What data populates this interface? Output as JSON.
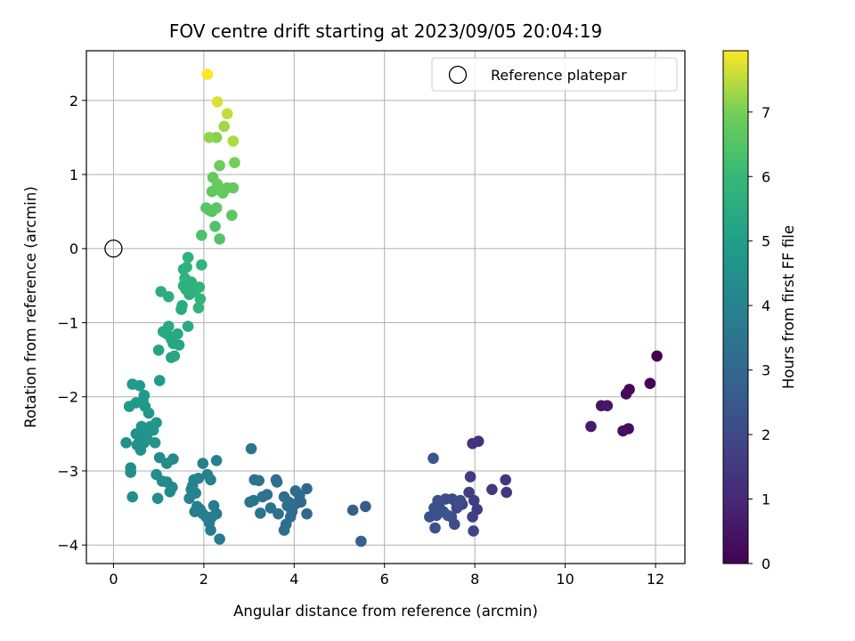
{
  "chart_data": {
    "type": "scatter",
    "title": "FOV centre drift starting at 2023/09/05 20:04:19",
    "xlabel": "Angular distance from reference (arcmin)",
    "ylabel": "Rotation from reference (arcmin)",
    "xlim": [
      -0.6,
      12.65
    ],
    "ylim": [
      -4.25,
      2.67
    ],
    "xticks": [
      "0",
      "2",
      "4",
      "6",
      "8",
      "10",
      "12"
    ],
    "yticks": [
      "−4",
      "−3",
      "−2",
      "−1",
      "0",
      "1",
      "2"
    ],
    "grid": true,
    "legend": {
      "placement": "top-right",
      "entries": [
        "Reference platepar"
      ]
    },
    "reference_point": {
      "x": 0,
      "y": 0,
      "label": "Reference platepar"
    },
    "colorbar": {
      "label": "Hours from first FF file",
      "range": [
        0,
        7.95
      ],
      "ticks": [
        "0",
        "1",
        "2",
        "3",
        "4",
        "5",
        "6",
        "7"
      ],
      "colormap": "viridis"
    },
    "points": [
      {
        "x": 12.03,
        "y": -1.45,
        "h": 0.03
      },
      {
        "x": 11.88,
        "y": -1.82,
        "h": 0.1
      },
      {
        "x": 11.42,
        "y": -1.9,
        "h": 0.18
      },
      {
        "x": 11.35,
        "y": -1.96,
        "h": 0.25
      },
      {
        "x": 11.4,
        "y": -2.43,
        "h": 0.3
      },
      {
        "x": 11.28,
        "y": -2.46,
        "h": 0.35
      },
      {
        "x": 10.8,
        "y": -2.12,
        "h": 0.45
      },
      {
        "x": 10.93,
        "y": -2.12,
        "h": 0.55
      },
      {
        "x": 10.57,
        "y": -2.4,
        "h": 0.65
      },
      {
        "x": 8.08,
        "y": -2.6,
        "h": 1.3
      },
      {
        "x": 7.95,
        "y": -2.63,
        "h": 1.35
      },
      {
        "x": 8.68,
        "y": -3.12,
        "h": 1.4
      },
      {
        "x": 8.7,
        "y": -3.29,
        "h": 1.45
      },
      {
        "x": 8.38,
        "y": -3.25,
        "h": 1.5
      },
      {
        "x": 7.9,
        "y": -3.08,
        "h": 1.55
      },
      {
        "x": 8.05,
        "y": -3.52,
        "h": 1.6
      },
      {
        "x": 7.98,
        "y": -3.4,
        "h": 1.65
      },
      {
        "x": 7.87,
        "y": -3.29,
        "h": 1.7
      },
      {
        "x": 7.95,
        "y": -3.62,
        "h": 1.75
      },
      {
        "x": 7.97,
        "y": -3.81,
        "h": 1.8
      },
      {
        "x": 7.72,
        "y": -3.45,
        "h": 1.85
      },
      {
        "x": 7.6,
        "y": -3.45,
        "h": 1.9
      },
      {
        "x": 7.5,
        "y": -3.38,
        "h": 1.95
      },
      {
        "x": 7.6,
        "y": -3.5,
        "h": 2.0
      },
      {
        "x": 7.48,
        "y": -3.62,
        "h": 2.05
      },
      {
        "x": 7.55,
        "y": -3.72,
        "h": 2.08
      },
      {
        "x": 7.35,
        "y": -3.38,
        "h": 2.1
      },
      {
        "x": 7.22,
        "y": -3.5,
        "h": 2.15
      },
      {
        "x": 7.15,
        "y": -3.6,
        "h": 2.2
      },
      {
        "x": 7.0,
        "y": -3.62,
        "h": 2.25
      },
      {
        "x": 7.1,
        "y": -3.5,
        "h": 2.28
      },
      {
        "x": 7.18,
        "y": -3.4,
        "h": 2.3
      },
      {
        "x": 7.3,
        "y": -3.55,
        "h": 2.32
      },
      {
        "x": 7.12,
        "y": -3.77,
        "h": 2.35
      },
      {
        "x": 7.4,
        "y": -3.6,
        "h": 2.38
      },
      {
        "x": 7.08,
        "y": -2.83,
        "h": 2.4
      },
      {
        "x": 7.68,
        "y": -3.4,
        "h": 2.12
      },
      {
        "x": 5.58,
        "y": -3.48,
        "h": 2.65
      },
      {
        "x": 5.3,
        "y": -3.53,
        "h": 2.7
      },
      {
        "x": 5.48,
        "y": -3.95,
        "h": 2.75
      },
      {
        "x": 4.28,
        "y": -3.24,
        "h": 2.95
      },
      {
        "x": 4.28,
        "y": -3.58,
        "h": 3.0
      },
      {
        "x": 4.12,
        "y": -3.33,
        "h": 3.05
      },
      {
        "x": 4.03,
        "y": -3.27,
        "h": 3.08
      },
      {
        "x": 4.15,
        "y": -3.42,
        "h": 3.1
      },
      {
        "x": 3.95,
        "y": -3.55,
        "h": 3.12
      },
      {
        "x": 4.02,
        "y": -3.45,
        "h": 3.14
      },
      {
        "x": 3.88,
        "y": -3.42,
        "h": 3.16
      },
      {
        "x": 3.92,
        "y": -3.62,
        "h": 3.18
      },
      {
        "x": 3.82,
        "y": -3.72,
        "h": 3.2
      },
      {
        "x": 3.78,
        "y": -3.8,
        "h": 3.22
      },
      {
        "x": 3.85,
        "y": -3.47,
        "h": 3.24
      },
      {
        "x": 3.78,
        "y": -3.35,
        "h": 3.26
      },
      {
        "x": 3.65,
        "y": -3.58,
        "h": 3.28
      },
      {
        "x": 3.62,
        "y": -3.15,
        "h": 3.3
      },
      {
        "x": 3.6,
        "y": -3.12,
        "h": 3.32
      },
      {
        "x": 3.48,
        "y": -3.5,
        "h": 3.34
      },
      {
        "x": 3.4,
        "y": -3.32,
        "h": 3.36
      },
      {
        "x": 3.3,
        "y": -3.35,
        "h": 3.38
      },
      {
        "x": 3.25,
        "y": -3.57,
        "h": 3.4
      },
      {
        "x": 3.22,
        "y": -3.13,
        "h": 3.42
      },
      {
        "x": 3.12,
        "y": -3.12,
        "h": 3.44
      },
      {
        "x": 3.1,
        "y": -3.4,
        "h": 3.46
      },
      {
        "x": 3.02,
        "y": -3.42,
        "h": 3.48
      },
      {
        "x": 3.05,
        "y": -2.7,
        "h": 3.5
      },
      {
        "x": 2.35,
        "y": -3.92,
        "h": 3.65
      },
      {
        "x": 2.28,
        "y": -3.58,
        "h": 3.68
      },
      {
        "x": 2.22,
        "y": -3.47,
        "h": 3.7
      },
      {
        "x": 2.18,
        "y": -3.62,
        "h": 3.72
      },
      {
        "x": 2.15,
        "y": -3.8,
        "h": 3.74
      },
      {
        "x": 2.12,
        "y": -3.7,
        "h": 3.76
      },
      {
        "x": 2.05,
        "y": -3.62,
        "h": 3.78
      },
      {
        "x": 1.98,
        "y": -3.58,
        "h": 3.8
      },
      {
        "x": 1.92,
        "y": -3.52,
        "h": 3.82
      },
      {
        "x": 1.8,
        "y": -3.55,
        "h": 3.84
      },
      {
        "x": 1.85,
        "y": -3.48,
        "h": 3.86
      },
      {
        "x": 2.28,
        "y": -2.86,
        "h": 3.88
      },
      {
        "x": 2.15,
        "y": -3.12,
        "h": 3.9
      },
      {
        "x": 2.08,
        "y": -3.05,
        "h": 3.92
      },
      {
        "x": 1.98,
        "y": -2.9,
        "h": 3.94
      },
      {
        "x": 1.88,
        "y": -3.1,
        "h": 3.96
      },
      {
        "x": 1.78,
        "y": -3.12,
        "h": 3.98
      },
      {
        "x": 1.72,
        "y": -3.25,
        "h": 4.0
      },
      {
        "x": 1.68,
        "y": -3.37,
        "h": 4.02
      },
      {
        "x": 1.75,
        "y": -3.2,
        "h": 4.04
      },
      {
        "x": 1.82,
        "y": -3.3,
        "h": 4.06
      },
      {
        "x": 1.32,
        "y": -2.84,
        "h": 4.2
      },
      {
        "x": 1.3,
        "y": -3.22,
        "h": 4.22
      },
      {
        "x": 1.25,
        "y": -3.28,
        "h": 4.24
      },
      {
        "x": 1.18,
        "y": -3.15,
        "h": 4.26
      },
      {
        "x": 1.08,
        "y": -3.14,
        "h": 4.28
      },
      {
        "x": 1.02,
        "y": -2.82,
        "h": 4.3
      },
      {
        "x": 0.95,
        "y": -3.05,
        "h": 4.32
      },
      {
        "x": 0.98,
        "y": -3.37,
        "h": 4.34
      },
      {
        "x": 1.18,
        "y": -2.9,
        "h": 4.36
      },
      {
        "x": 0.42,
        "y": -3.35,
        "h": 4.4
      },
      {
        "x": 0.38,
        "y": -3.02,
        "h": 4.42
      },
      {
        "x": 0.38,
        "y": -2.96,
        "h": 4.44
      },
      {
        "x": 0.28,
        "y": -2.62,
        "h": 4.46
      },
      {
        "x": 0.52,
        "y": -2.65,
        "h": 4.48
      },
      {
        "x": 0.6,
        "y": -2.72,
        "h": 4.5
      },
      {
        "x": 0.68,
        "y": -2.62,
        "h": 4.52
      },
      {
        "x": 0.58,
        "y": -2.55,
        "h": 4.54
      },
      {
        "x": 0.5,
        "y": -2.5,
        "h": 4.56
      },
      {
        "x": 0.65,
        "y": -2.5,
        "h": 4.58
      },
      {
        "x": 0.75,
        "y": -2.57,
        "h": 4.6
      },
      {
        "x": 0.88,
        "y": -2.45,
        "h": 4.62
      },
      {
        "x": 0.82,
        "y": -2.4,
        "h": 4.64
      },
      {
        "x": 0.92,
        "y": -2.62,
        "h": 4.66
      },
      {
        "x": 0.95,
        "y": -2.35,
        "h": 4.68
      },
      {
        "x": 0.78,
        "y": -2.22,
        "h": 4.7
      },
      {
        "x": 0.62,
        "y": -2.4,
        "h": 4.72
      },
      {
        "x": 0.7,
        "y": -2.13,
        "h": 4.74
      },
      {
        "x": 0.65,
        "y": -2.05,
        "h": 4.76
      },
      {
        "x": 0.5,
        "y": -2.08,
        "h": 4.78
      },
      {
        "x": 0.35,
        "y": -2.13,
        "h": 4.8
      },
      {
        "x": 0.68,
        "y": -1.98,
        "h": 4.82
      },
      {
        "x": 0.58,
        "y": -1.85,
        "h": 4.84
      },
      {
        "x": 0.42,
        "y": -1.83,
        "h": 4.86
      },
      {
        "x": 1.02,
        "y": -1.78,
        "h": 4.9
      },
      {
        "x": 1.0,
        "y": -1.37,
        "h": 5.2
      },
      {
        "x": 1.28,
        "y": -1.47,
        "h": 5.25
      },
      {
        "x": 1.35,
        "y": -1.45,
        "h": 5.28
      },
      {
        "x": 1.45,
        "y": -1.3,
        "h": 5.3
      },
      {
        "x": 1.32,
        "y": -1.28,
        "h": 5.32
      },
      {
        "x": 1.28,
        "y": -1.22,
        "h": 5.34
      },
      {
        "x": 1.42,
        "y": -1.15,
        "h": 5.36
      },
      {
        "x": 1.18,
        "y": -1.15,
        "h": 5.38
      },
      {
        "x": 1.1,
        "y": -1.12,
        "h": 5.4
      },
      {
        "x": 1.22,
        "y": -1.05,
        "h": 5.42
      },
      {
        "x": 1.65,
        "y": -1.05,
        "h": 5.45
      },
      {
        "x": 1.5,
        "y": -0.82,
        "h": 5.48
      },
      {
        "x": 1.52,
        "y": -0.77,
        "h": 5.5
      },
      {
        "x": 1.05,
        "y": -0.58,
        "h": 5.55
      },
      {
        "x": 1.22,
        "y": -0.65,
        "h": 5.58
      },
      {
        "x": 1.68,
        "y": -0.62,
        "h": 5.62
      },
      {
        "x": 1.6,
        "y": -0.55,
        "h": 5.64
      },
      {
        "x": 1.72,
        "y": -0.45,
        "h": 5.66
      },
      {
        "x": 1.8,
        "y": -0.58,
        "h": 5.68
      },
      {
        "x": 1.55,
        "y": -0.5,
        "h": 5.7
      },
      {
        "x": 1.58,
        "y": -0.4,
        "h": 5.72
      },
      {
        "x": 1.55,
        "y": -0.28,
        "h": 5.74
      },
      {
        "x": 1.62,
        "y": -0.25,
        "h": 5.76
      },
      {
        "x": 1.65,
        "y": -0.12,
        "h": 5.78
      },
      {
        "x": 1.95,
        "y": -0.22,
        "h": 5.8
      },
      {
        "x": 1.9,
        "y": -0.52,
        "h": 5.82
      },
      {
        "x": 1.92,
        "y": -0.68,
        "h": 5.84
      },
      {
        "x": 1.88,
        "y": -0.8,
        "h": 5.86
      },
      {
        "x": 1.95,
        "y": 0.18,
        "h": 6.4
      },
      {
        "x": 2.25,
        "y": 0.3,
        "h": 6.45
      },
      {
        "x": 2.35,
        "y": 0.13,
        "h": 6.5
      },
      {
        "x": 2.05,
        "y": 0.55,
        "h": 6.55
      },
      {
        "x": 2.12,
        "y": 0.52,
        "h": 6.58
      },
      {
        "x": 2.18,
        "y": 0.5,
        "h": 6.6
      },
      {
        "x": 2.28,
        "y": 0.55,
        "h": 6.62
      },
      {
        "x": 2.62,
        "y": 0.45,
        "h": 6.65
      },
      {
        "x": 2.18,
        "y": 0.77,
        "h": 6.7
      },
      {
        "x": 2.3,
        "y": 0.8,
        "h": 6.72
      },
      {
        "x": 2.42,
        "y": 0.75,
        "h": 6.74
      },
      {
        "x": 2.52,
        "y": 0.82,
        "h": 6.76
      },
      {
        "x": 2.65,
        "y": 0.82,
        "h": 6.78
      },
      {
        "x": 2.2,
        "y": 0.96,
        "h": 6.8
      },
      {
        "x": 2.3,
        "y": 0.87,
        "h": 6.82
      },
      {
        "x": 2.35,
        "y": 1.12,
        "h": 6.9
      },
      {
        "x": 2.68,
        "y": 1.16,
        "h": 7.0
      },
      {
        "x": 2.28,
        "y": 1.5,
        "h": 7.1
      },
      {
        "x": 2.12,
        "y": 1.5,
        "h": 7.2
      },
      {
        "x": 2.45,
        "y": 1.65,
        "h": 7.3
      },
      {
        "x": 2.65,
        "y": 1.45,
        "h": 7.4
      },
      {
        "x": 2.52,
        "y": 1.82,
        "h": 7.55
      },
      {
        "x": 2.3,
        "y": 1.98,
        "h": 7.7
      },
      {
        "x": 2.08,
        "y": 2.35,
        "h": 7.95
      }
    ]
  }
}
